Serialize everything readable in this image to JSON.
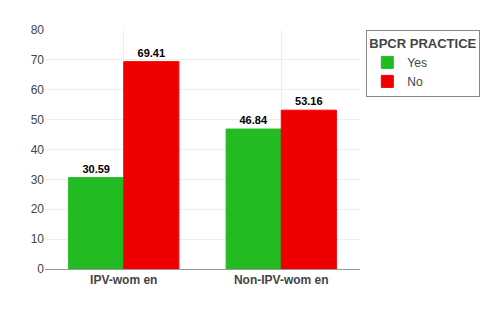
{
  "chart_data": {
    "type": "bar",
    "categories": [
      "IPV-wom en",
      "Non-IPV-wom en"
    ],
    "series": [
      {
        "name": "Yes",
        "color": "#22BB22",
        "values": [
          30.59,
          46.84
        ]
      },
      {
        "name": "No",
        "color": "#EE0000",
        "values": [
          69.41,
          53.16
        ]
      }
    ],
    "legend_title": "BPCR PRACTICE",
    "legend": "upper right",
    "ylim": [
      0,
      80
    ],
    "yticks": [
      0,
      10,
      20,
      30,
      40,
      50,
      60,
      70,
      80
    ],
    "grid": true,
    "data_labels": true
  }
}
